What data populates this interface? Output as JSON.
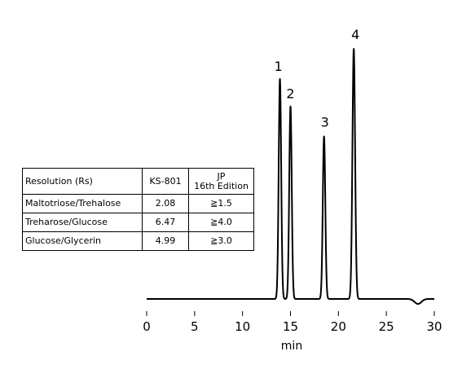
{
  "chart_data": {
    "type": "line",
    "title": "",
    "xlabel": "min",
    "ylabel": "",
    "xlim": [
      0,
      30
    ],
    "xticks": [
      0,
      5,
      10,
      15,
      20,
      25,
      30
    ],
    "grid": false,
    "line_color": "#000000",
    "baseline_range": [
      0,
      30
    ],
    "peaks": [
      {
        "label": "1",
        "rt": 13.9,
        "height": 0.88,
        "width": 0.13
      },
      {
        "label": "2",
        "rt": 15.0,
        "height": 0.77,
        "width": 0.13
      },
      {
        "label": "3",
        "rt": 18.5,
        "height": 0.65,
        "width": 0.13
      },
      {
        "label": "4",
        "rt": 21.6,
        "height": 1.0,
        "width": 0.14
      }
    ],
    "baseline_dip": {
      "rt": 28.3,
      "depth": 0.02,
      "width": 0.35
    }
  },
  "table": {
    "header": {
      "col1": "Resolution (Rs)",
      "col2": "KS-801",
      "col3_line1": "JP",
      "col3_line2": "16th Edition"
    },
    "rows": [
      {
        "pair": "Maltotriose/Trehalose",
        "ks801": "2.08",
        "jp": "≧1.5"
      },
      {
        "pair": "Treharose/Glucose",
        "ks801": "6.47",
        "jp": "≧4.0"
      },
      {
        "pair": "Glucose/Glycerin",
        "ks801": "4.99",
        "jp": "≧3.0"
      }
    ]
  }
}
